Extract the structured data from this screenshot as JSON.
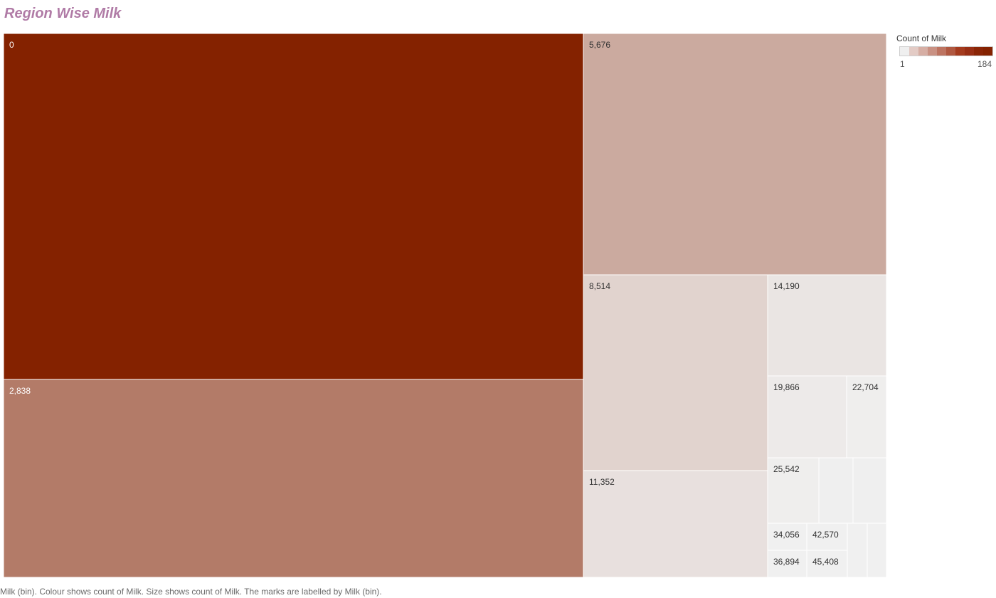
{
  "chart_data": {
    "type": "treemap",
    "title": "Region Wise Milk",
    "measure": "Count of Milk",
    "bins": [
      {
        "label": "0",
        "count": 184
      },
      {
        "label": "2,838",
        "count": 105
      },
      {
        "label": "5,676",
        "count": 63
      },
      {
        "label": "8,514",
        "count": 27
      },
      {
        "label": "11,352",
        "count": 15
      },
      {
        "label": "14,190",
        "count": 11
      },
      {
        "label": "19,866",
        "count": 6
      },
      {
        "label": "22,704",
        "count": 3
      },
      {
        "label": "25,542",
        "count": 3
      },
      {
        "label": "",
        "count": 2
      },
      {
        "label": "",
        "count": 2
      },
      {
        "label": "34,056",
        "count": 1
      },
      {
        "label": "42,570",
        "count": 1
      },
      {
        "label": "36,894",
        "count": 1
      },
      {
        "label": "45,408",
        "count": 1
      },
      {
        "label": "",
        "count": 1
      },
      {
        "label": "",
        "count": 1
      }
    ],
    "color_scale": {
      "min": 1,
      "max": 184
    }
  },
  "legend": {
    "title": "Count of Milk",
    "min_label": "1",
    "max_label": "184",
    "swatches": [
      "#efefef",
      "#e3cbc5",
      "#d6aea4",
      "#c99183",
      "#bd7461",
      "#b05840",
      "#a43b1e",
      "#982e14",
      "#8a2506",
      "#842200"
    ]
  },
  "caption": "Milk (bin).  Colour shows count of Milk.  Size shows count of Milk.  The marks are labelled by Milk (bin).",
  "colors": {
    "title": "#b07ba6",
    "low": "#f0f0f0",
    "high": "#842200",
    "label_dark_bg": "#ffffff",
    "label_light_bg": "#333333",
    "border": "#ffffff"
  }
}
